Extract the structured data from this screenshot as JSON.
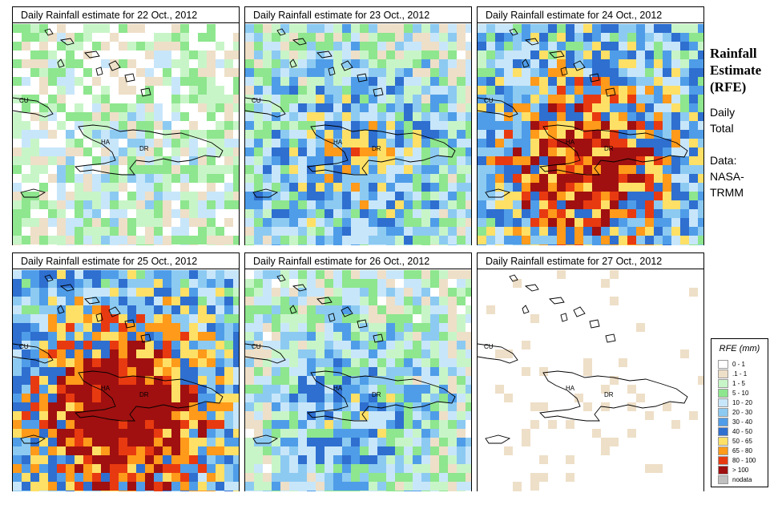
{
  "panels": [
    {
      "title": "Daily Rainfall estimate for  22 Oct., 2012",
      "intensity": 0.25
    },
    {
      "title": "Daily Rainfall estimate for  23 Oct., 2012",
      "intensity": 0.55
    },
    {
      "title": "Daily Rainfall estimate for  24 Oct., 2012",
      "intensity": 0.85
    },
    {
      "title": "Daily Rainfall estimate for  25 Oct., 2012",
      "intensity": 0.95
    },
    {
      "title": "Daily Rainfall estimate for  26 Oct., 2012",
      "intensity": 0.45
    },
    {
      "title": "Daily Rainfall estimate for  27 Oct., 2012",
      "intensity": 0.08
    }
  ],
  "map_labels": {
    "cuba": "CU",
    "haiti": "HA",
    "dominican_republic": "DR"
  },
  "sidebar": {
    "title_line1": "Rainfall",
    "title_line2": "Estimate",
    "title_line3": "(RFE)",
    "daily": "Daily",
    "total": "Total",
    "data_label": "Data:",
    "source_line1": "NASA-",
    "source_line2": "TRMM"
  },
  "legend": {
    "title": "RFE (mm)",
    "items": [
      {
        "label": "0 - 1",
        "color": "#ffffff"
      },
      {
        "label": ".1 - 1",
        "color": "#eedfc8"
      },
      {
        "label": "1 - 5",
        "color": "#c8f5c8"
      },
      {
        "label": "5 - 10",
        "color": "#8ee68e"
      },
      {
        "label": "10 - 20",
        "color": "#c8e6fa"
      },
      {
        "label": "20 - 30",
        "color": "#8ccaf2"
      },
      {
        "label": "30 - 40",
        "color": "#4f9de8"
      },
      {
        "label": "40 - 50",
        "color": "#2e6fd0"
      },
      {
        "label": "50 - 65",
        "color": "#ffe066"
      },
      {
        "label": "65 - 80",
        "color": "#ff9a1a"
      },
      {
        "label": "80 - 100",
        "color": "#e83a10"
      },
      {
        "label": "> 100",
        "color": "#a01010"
      },
      {
        "label": "nodata",
        "color": "#c0c0c0"
      }
    ]
  }
}
